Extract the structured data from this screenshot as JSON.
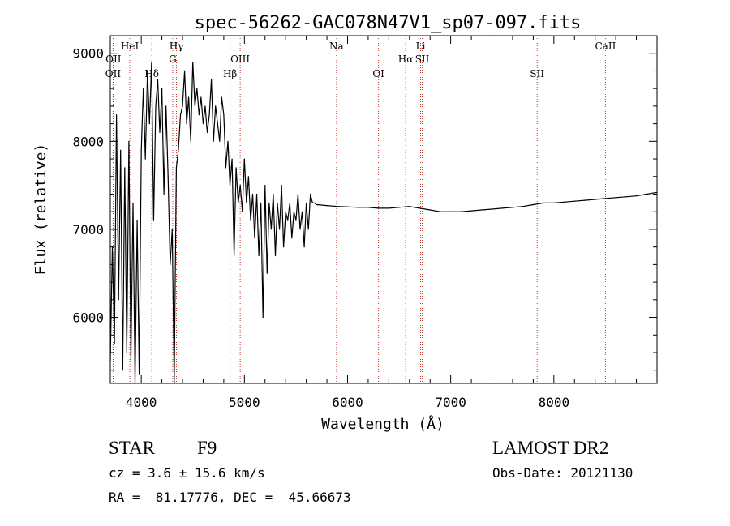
{
  "chart_data": {
    "type": "line",
    "title": "spec-56262-GAC078N47V1_sp07-097.fits",
    "xlabel": "Wavelength (Å)",
    "ylabel": "Flux (relative)",
    "xlim": [
      3700,
      9000
    ],
    "ylim": [
      5250,
      9200
    ],
    "x_ticks": [
      4000,
      5000,
      6000,
      7000,
      8000
    ],
    "y_ticks": [
      6000,
      7000,
      8000,
      9000
    ],
    "grid": false,
    "series": [
      {
        "name": "spectrum",
        "x": [
          3700,
          3720,
          3740,
          3760,
          3780,
          3800,
          3820,
          3840,
          3860,
          3880,
          3900,
          3920,
          3940,
          3960,
          3980,
          4000,
          4020,
          4040,
          4060,
          4080,
          4100,
          4120,
          4140,
          4160,
          4180,
          4200,
          4220,
          4240,
          4260,
          4280,
          4300,
          4320,
          4340,
          4360,
          4380,
          4400,
          4420,
          4440,
          4460,
          4480,
          4500,
          4520,
          4540,
          4560,
          4580,
          4600,
          4620,
          4640,
          4660,
          4680,
          4700,
          4720,
          4740,
          4760,
          4780,
          4800,
          4820,
          4840,
          4860,
          4880,
          4900,
          4920,
          4940,
          4960,
          4980,
          5000,
          5020,
          5040,
          5060,
          5080,
          5100,
          5120,
          5140,
          5160,
          5180,
          5200,
          5220,
          5240,
          5260,
          5280,
          5300,
          5320,
          5340,
          5360,
          5380,
          5400,
          5420,
          5440,
          5460,
          5480,
          5500,
          5520,
          5540,
          5560,
          5580,
          5600,
          5620,
          5640,
          5660,
          5680,
          5700,
          5800,
          5900,
          6000,
          6100,
          6200,
          6300,
          6400,
          6500,
          6600,
          6700,
          6800,
          6900,
          7000,
          7100,
          7200,
          7300,
          7400,
          7500,
          7600,
          7700,
          7800,
          7900,
          8000,
          8100,
          8200,
          8300,
          8400,
          8500,
          8600,
          8700,
          8800,
          8900,
          9000
        ],
        "y": [
          5500,
          6800,
          5700,
          8300,
          6200,
          7900,
          5400,
          7700,
          5600,
          8000,
          5500,
          7300,
          5250,
          7100,
          5350,
          7900,
          8600,
          7800,
          8800,
          8200,
          8900,
          7100,
          8400,
          8700,
          8100,
          8600,
          7400,
          8400,
          7600,
          6600,
          7000,
          5250,
          7700,
          7900,
          8300,
          8400,
          8800,
          8200,
          8500,
          8000,
          8900,
          8400,
          8600,
          8300,
          8500,
          8200,
          8400,
          8100,
          8300,
          8700,
          8000,
          8400,
          8200,
          8000,
          8500,
          8300,
          7700,
          8000,
          7500,
          7800,
          6700,
          7700,
          7300,
          7500,
          7200,
          7800,
          7300,
          7600,
          7100,
          7400,
          6900,
          7400,
          6700,
          7300,
          6000,
          7500,
          6500,
          7300,
          7000,
          7400,
          6700,
          7300,
          7000,
          7500,
          6800,
          7200,
          7100,
          7300,
          6900,
          7200,
          7100,
          7400,
          7000,
          7200,
          6800,
          7300,
          7000,
          7400,
          7300,
          7300,
          7280,
          7270,
          7260,
          7255,
          7250,
          7250,
          7240,
          7240,
          7250,
          7260,
          7240,
          7220,
          7200,
          7200,
          7200,
          7210,
          7220,
          7230,
          7240,
          7250,
          7260,
          7280,
          7300,
          7300,
          7310,
          7320,
          7330,
          7340,
          7350,
          7360,
          7370,
          7380,
          7400,
          7420
        ]
      }
    ],
    "lines": [
      {
        "label": "OII",
        "wavelength": 3727,
        "row": 2
      },
      {
        "label": "OII",
        "wavelength": 3730,
        "row": 1
      },
      {
        "label": "HeI",
        "wavelength": 3889,
        "row": 0
      },
      {
        "label": "Hδ",
        "wavelength": 4102,
        "row": 2
      },
      {
        "label": "Hγ",
        "wavelength": 4341,
        "row": 0
      },
      {
        "label": "G",
        "wavelength": 4305,
        "row": 1
      },
      {
        "label": "Hβ",
        "wavelength": 4861,
        "row": 2
      },
      {
        "label": "OIII",
        "wavelength": 4959,
        "row": 1
      },
      {
        "label": "Na",
        "wavelength": 5893,
        "row": 0
      },
      {
        "label": "OI",
        "wavelength": 6300,
        "row": 2
      },
      {
        "label": "Hα",
        "wavelength": 6563,
        "row": 1
      },
      {
        "label": "Li",
        "wavelength": 6708,
        "row": 0
      },
      {
        "label": "SII",
        "wavelength": 6724,
        "row": 1
      },
      {
        "label": "SII",
        "wavelength": 7838,
        "row": 2
      },
      {
        "label": "CaII",
        "wavelength": 8500,
        "row": 0
      }
    ]
  },
  "info": {
    "object_class": "STAR",
    "subclass": "F9",
    "survey": "LAMOST DR2",
    "cz": "cz = 3.6 ± 15.6 km/s",
    "obs_date": "Obs-Date: 20121130",
    "coords": "RA =  81.17776, DEC =  45.66673"
  }
}
